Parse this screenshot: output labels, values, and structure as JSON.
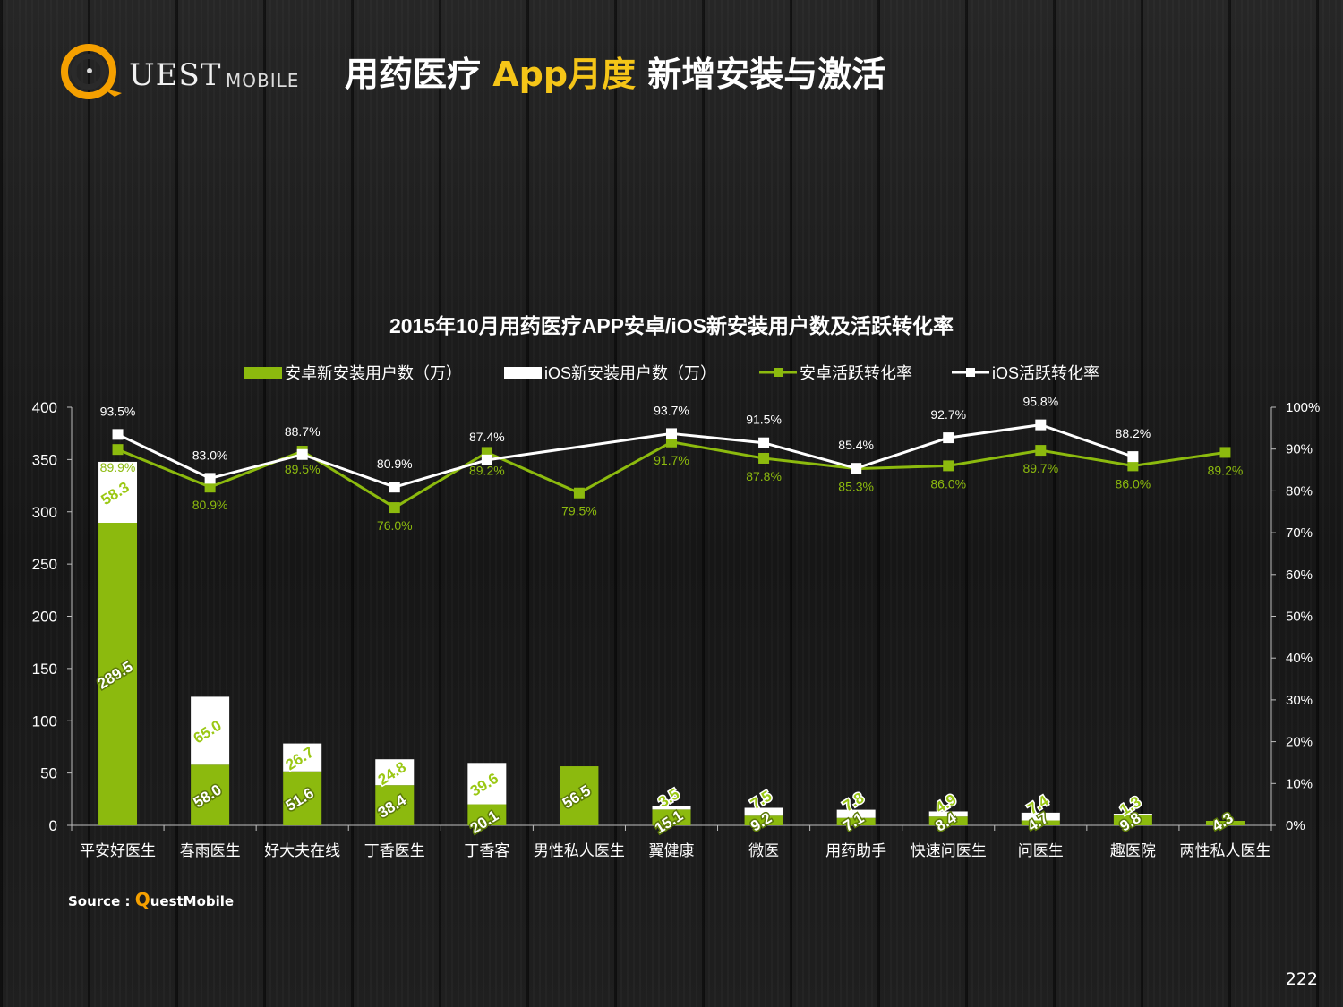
{
  "header": {
    "logo_text": "QUEST MOBILE",
    "title_part1": "用药医疗 ",
    "title_part2": "App月度",
    "title_part3": " 新增安装与激活",
    "highlight_color": "#f5c518",
    "logo_color": "#f5a000"
  },
  "footer": {
    "source_label": "Source : ",
    "source_q": "Q",
    "source_rest": "uestMobile",
    "page_number": "222"
  },
  "chart_data": {
    "type": "bar",
    "stacked": true,
    "title": "2015年10月用药医疗APP安卓/iOS新安装用户数及活跃转化率",
    "categories": [
      "平安好医生",
      "春雨医生",
      "好大夫在线",
      "丁香医生",
      "丁香客",
      "男性私人医生",
      "翼健康",
      "微医",
      "用药助手",
      "快速问医生",
      "问医生",
      "趣医院",
      "两性私人医生"
    ],
    "series": [
      {
        "name": "安卓新安装用户数（万）",
        "kind": "bar",
        "axis": "left",
        "color": "#8cba0e",
        "values": [
          289.5,
          58.0,
          51.6,
          38.4,
          20.1,
          56.5,
          15.1,
          9.2,
          7.1,
          8.4,
          4.7,
          9.8,
          4.3
        ]
      },
      {
        "name": "iOS新安装用户数（万）",
        "kind": "bar",
        "axis": "left",
        "color": "#ffffff",
        "values": [
          58.3,
          65.0,
          26.7,
          24.8,
          39.6,
          null,
          3.5,
          7.5,
          7.8,
          4.9,
          7.4,
          1.3,
          null
        ]
      },
      {
        "name": "安卓活跃转化率",
        "kind": "line",
        "axis": "right",
        "color": "#8cba0e",
        "values": [
          89.9,
          80.9,
          89.5,
          76.0,
          89.2,
          79.5,
          91.7,
          87.8,
          85.3,
          86.0,
          89.7,
          86.0,
          89.2
        ]
      },
      {
        "name": "iOS活跃转化率",
        "kind": "line",
        "axis": "right",
        "color": "#ffffff",
        "values": [
          93.5,
          83.0,
          88.7,
          80.9,
          87.4,
          null,
          93.7,
          91.5,
          85.4,
          92.7,
          95.8,
          88.2,
          null
        ]
      }
    ],
    "bar_labels": {
      "android": [
        "289.5",
        "58.0",
        "51.6",
        "38.4",
        "20.1",
        "56.5",
        "15.1",
        "9.2",
        "7.1",
        "8.4",
        "4.7",
        "9.8",
        "4.3"
      ],
      "ios": [
        "58.3",
        "65.0",
        "26.7",
        "24.8",
        "39.6",
        "",
        "3.5",
        "7.5",
        "7.8",
        "4.9",
        "7.4",
        "1.3",
        ""
      ]
    },
    "line_labels": {
      "android": [
        "89.9%",
        "80.9%",
        "89.5%",
        "76.0%",
        "89.2%",
        "79.5%",
        "91.7%",
        "87.8%",
        "85.3%",
        "86.0%",
        "89.7%",
        "86.0%",
        "89.2%"
      ],
      "ios": [
        "93.5%",
        "83.0%",
        "88.7%",
        "80.9%",
        "87.4%",
        "",
        "93.7%",
        "91.5%",
        "85.4%",
        "92.7%",
        "95.8%",
        "88.2%",
        ""
      ]
    },
    "y_left": {
      "min": 0,
      "max": 400,
      "ticks": [
        "0",
        "50",
        "100",
        "150",
        "200",
        "250",
        "300",
        "350",
        "400"
      ]
    },
    "y_right": {
      "min": 0,
      "max": 100,
      "ticks": [
        "0%",
        "10%",
        "20%",
        "30%",
        "40%",
        "50%",
        "60%",
        "70%",
        "80%",
        "90%",
        "100%"
      ]
    },
    "legend": {
      "position": "top",
      "labels": [
        "安卓新安装用户数（万）",
        "iOS新安装用户数（万）",
        "安卓活跃转化率",
        "iOS活跃转化率"
      ]
    },
    "grid": false
  }
}
